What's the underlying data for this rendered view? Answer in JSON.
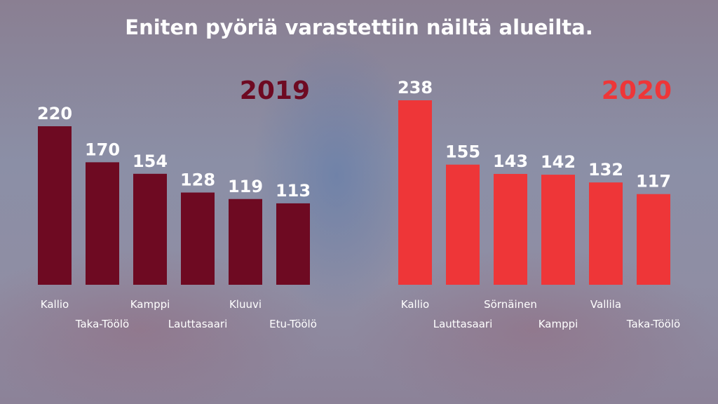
{
  "title": "Eniten pyöriä varastettiin näiltä alueilta.",
  "chart_data": [
    {
      "type": "bar",
      "title": "2019",
      "color": "#6e0a22",
      "categories": [
        "Kallio",
        "Taka-Töölö",
        "Kamppi",
        "Lauttasaari",
        "Kluuvi",
        "Etu-Töölö"
      ],
      "values": [
        220,
        170,
        154,
        128,
        119,
        113
      ]
    },
    {
      "type": "bar",
      "title": "2020",
      "color": "#ee3638",
      "categories": [
        "Kallio",
        "Lauttasaari",
        "Sörnäinen",
        "Kamppi",
        "Vallila",
        "Taka-Töölö"
      ],
      "values": [
        238,
        155,
        143,
        142,
        132,
        117
      ]
    }
  ]
}
